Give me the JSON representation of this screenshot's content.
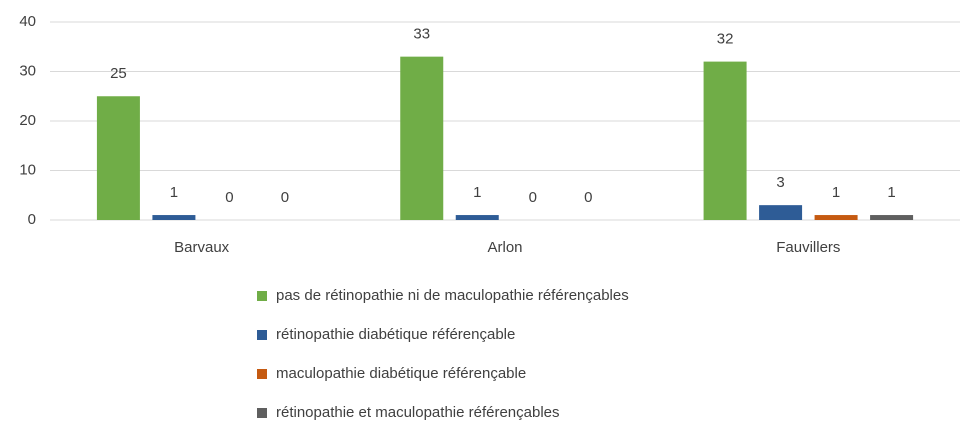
{
  "chart_data": {
    "type": "bar",
    "categories": [
      "Barvaux",
      "Arlon",
      "Fauvillers"
    ],
    "series": [
      {
        "name": "pas de rétinopathie ni de maculopathie référençables",
        "color": "#70ad47",
        "values": [
          25,
          33,
          32
        ]
      },
      {
        "name": "rétinopathie diabétique référençable",
        "color": "#2e5c96",
        "values": [
          1,
          1,
          3
        ]
      },
      {
        "name": "maculopathie diabétique référençable",
        "color": "#c55a11",
        "values": [
          0,
          0,
          1
        ]
      },
      {
        "name": "rétinopathie et maculopathie référençables",
        "color": "#5f5f5f",
        "values": [
          0,
          0,
          1
        ]
      }
    ],
    "ylim": [
      0,
      40
    ],
    "yticks": [
      0,
      10,
      20,
      30,
      40
    ],
    "grid": true,
    "legend": "bottom"
  }
}
